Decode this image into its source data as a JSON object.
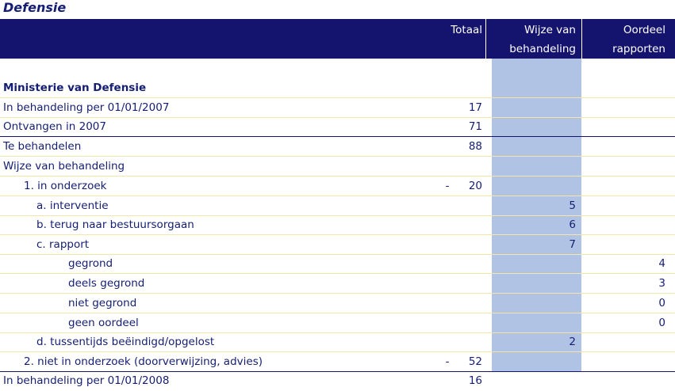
{
  "title": "Defensie",
  "header": {
    "totaal": "Totaal",
    "wijze_line1": "Wijze van",
    "wijze_line2": "behandeling",
    "oordeel_line1": "Oordeel",
    "oordeel_line2": "rapporten"
  },
  "rows": [
    {
      "label": "Ministerie van Defensie",
      "totaal": "",
      "wijze": "",
      "oordeel": "",
      "dash": ""
    },
    {
      "label": "In behandeling per 01/01/2007",
      "totaal": "17",
      "wijze": "",
      "oordeel": "",
      "dash": ""
    },
    {
      "label": "Ontvangen in 2007",
      "totaal": "71",
      "wijze": "",
      "oordeel": "",
      "dash": ""
    },
    {
      "label": "Te behandelen",
      "totaal": "88",
      "wijze": "",
      "oordeel": "",
      "dash": ""
    },
    {
      "label": "Wijze van behandeling",
      "totaal": "",
      "wijze": "",
      "oordeel": "",
      "dash": ""
    },
    {
      "label": "1. in onderzoek",
      "totaal": "20",
      "wijze": "",
      "oordeel": "",
      "dash": "-"
    },
    {
      "label": "a. interventie",
      "totaal": "",
      "wijze": "5",
      "oordeel": "",
      "dash": ""
    },
    {
      "label": "b. terug naar bestuursorgaan",
      "totaal": "",
      "wijze": "6",
      "oordeel": "",
      "dash": ""
    },
    {
      "label": "c. rapport",
      "totaal": "",
      "wijze": "7",
      "oordeel": "",
      "dash": ""
    },
    {
      "label": "gegrond",
      "totaal": "",
      "wijze": "",
      "oordeel": "4",
      "dash": ""
    },
    {
      "label": "deels gegrond",
      "totaal": "",
      "wijze": "",
      "oordeel": "3",
      "dash": ""
    },
    {
      "label": "niet gegrond",
      "totaal": "",
      "wijze": "",
      "oordeel": "0",
      "dash": ""
    },
    {
      "label": "geen oordeel",
      "totaal": "",
      "wijze": "",
      "oordeel": "0",
      "dash": ""
    },
    {
      "label": "d. tussentijds beëindigd/opgelost",
      "totaal": "",
      "wijze": "2",
      "oordeel": "",
      "dash": ""
    },
    {
      "label": "2. niet in onderzoek (doorverwijzing, advies)",
      "totaal": "52",
      "wijze": "",
      "oordeel": "",
      "dash": "-"
    },
    {
      "label": "In behandeling per 01/01/2008",
      "totaal": "16",
      "wijze": "",
      "oordeel": "",
      "dash": ""
    }
  ]
}
